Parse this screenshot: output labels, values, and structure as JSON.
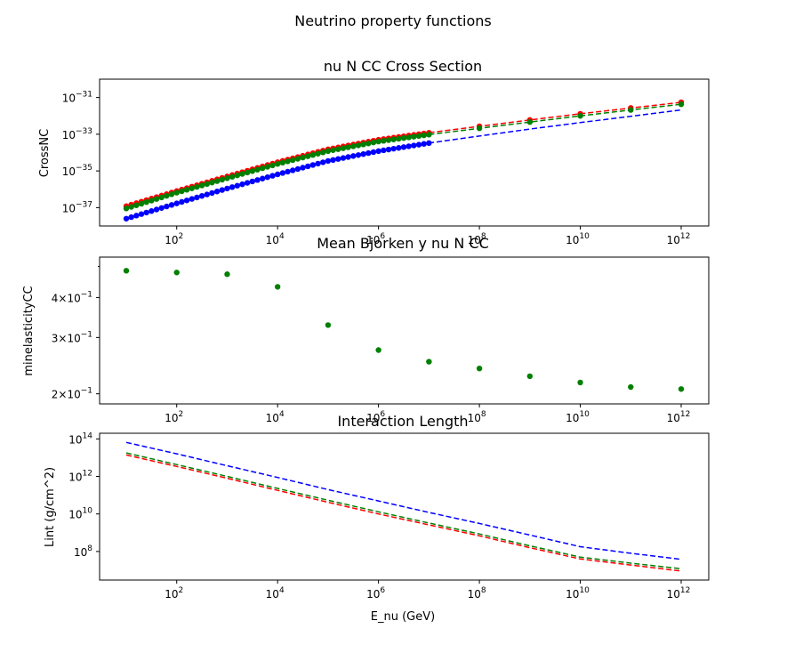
{
  "figure": {
    "suptitle": "Neutrino property functions"
  },
  "colors": {
    "red": "#ff0000",
    "green": "#008000",
    "blue": "#0000ff"
  },
  "chart_data": [
    {
      "type": "scatter",
      "title": "nu N CC Cross Section",
      "xlabel": "",
      "ylabel": "CrossNC",
      "xscale": "log",
      "yscale": "log",
      "xlim": [
        1,
        1000000000000.0
      ],
      "ylim": [
        1e-38,
        1e-30
      ],
      "x_ticks": [
        {
          "exp": 2,
          "label": "10",
          "sup": "2"
        },
        {
          "exp": 4,
          "label": "10",
          "sup": "4"
        },
        {
          "exp": 6,
          "label": "10",
          "sup": "6"
        },
        {
          "exp": 8,
          "label": "10",
          "sup": "8"
        },
        {
          "exp": 10,
          "label": "10",
          "sup": "10"
        },
        {
          "exp": 12,
          "label": "10",
          "sup": "12"
        }
      ],
      "y_ticks": [
        {
          "exp": -37,
          "label": "10",
          "sup": "−37"
        },
        {
          "exp": -35,
          "label": "10",
          "sup": "−35"
        },
        {
          "exp": -33,
          "label": "10",
          "sup": "−33"
        },
        {
          "exp": -31,
          "label": "10",
          "sup": "−31"
        }
      ],
      "x_ticks_sparse": [
        {
          "exp": 6,
          "label": "10",
          "sup": "6"
        },
        {
          "exp": 8,
          "label": "10",
          "sup": "8"
        }
      ],
      "grid": false,
      "series": [
        {
          "color": "red",
          "dense_points_log10_x": [
            1,
            5
          ],
          "dense_points_log10_y_fn": "cross",
          "sparse_x": [
            10.0,
            100.0,
            1000.0,
            10000.0,
            100000.0,
            1000000.0,
            10000000.0,
            100000000.0,
            1000000000.0,
            10000000000.0,
            100000000000.0,
            1000000000000.0
          ],
          "curve_x": [
            10.0,
            100.0,
            1000.0,
            10000.0,
            100000.0,
            1000000.0,
            10000000.0,
            100000000.0,
            1000000000.0,
            10000000000.0,
            100000000000.0,
            1000000000000.0
          ],
          "curve_y": [
            1.2e-37,
            8e-37,
            5e-36,
            3e-35,
            1.5e-34,
            5e-34,
            1.2e-33,
            2.7e-33,
            6e-33,
            1.3e-32,
            2.7e-32,
            5.5e-32
          ]
        },
        {
          "color": "green",
          "curve_x": [
            10.0,
            100.0,
            1000.0,
            10000.0,
            100000.0,
            1000000.0,
            10000000.0,
            100000000.0,
            1000000000.0,
            10000000000.0,
            100000000000.0,
            1000000000000.0
          ],
          "curve_y": [
            9e-38,
            6.5e-37,
            4e-36,
            2.4e-35,
            1.2e-34,
            4e-34,
            9.5e-34,
            2.1e-33,
            4.6e-33,
            1e-32,
            2.1e-32,
            4.3e-32
          ]
        },
        {
          "color": "blue",
          "curve_x": [
            10.0,
            100.0,
            1000.0,
            10000.0,
            100000.0,
            1000000.0,
            10000000.0,
            100000000.0,
            1000000000.0,
            10000000000.0,
            100000000000.0,
            1000000000000.0
          ],
          "curve_y": [
            2.5e-38,
            1.7e-37,
            1.1e-36,
            6.5e-36,
            3.5e-35,
            1.2e-34,
            3.3e-34,
            8e-34,
            1.9e-33,
            4.3e-33,
            9.5e-33,
            2.1e-32
          ]
        }
      ]
    },
    {
      "type": "scatter",
      "title": "Mean Bjorken y nu N CC",
      "xlabel": "",
      "ylabel": "minelasticityCC",
      "xscale": "log",
      "yscale": "log",
      "xlim": [
        1,
        1000000000000.0
      ],
      "ylim": [
        0.186,
        0.535
      ],
      "y_ticks": [
        {
          "value": 0.2,
          "label": "2×10",
          "sup": "−1"
        },
        {
          "value": 0.3,
          "label": "3×10",
          "sup": "−1"
        },
        {
          "value": 0.4,
          "label": "4×10",
          "sup": "−1"
        }
      ],
      "series": [
        {
          "color": "green",
          "x": [
            10.0,
            100.0,
            1000.0,
            10000.0,
            100000.0,
            1000000.0,
            10000000.0,
            100000000.0,
            1000000000.0,
            10000000000.0,
            100000000000.0,
            1000000000000.0
          ],
          "y": [
            0.485,
            0.479,
            0.473,
            0.432,
            0.328,
            0.274,
            0.252,
            0.24,
            0.227,
            0.217,
            0.21,
            0.207
          ]
        }
      ]
    },
    {
      "type": "line",
      "title": "Interaction Length",
      "xlabel": "E_nu (GeV)",
      "ylabel": "Lint (g/cm^2)",
      "xscale": "log",
      "yscale": "log",
      "xlim": [
        1,
        1000000000000.0
      ],
      "ylim": [
        3000000.0,
        200000000000000.0
      ],
      "y_ticks": [
        {
          "exp": 8,
          "label": "10",
          "sup": "8"
        },
        {
          "exp": 10,
          "label": "10",
          "sup": "10"
        },
        {
          "exp": 12,
          "label": "10",
          "sup": "12"
        },
        {
          "exp": 14,
          "label": "10",
          "sup": "14"
        }
      ],
      "series": [
        {
          "color": "red",
          "style": "dashed",
          "x": [
            10.0,
            100.0,
            1000.0,
            10000.0,
            100000.0,
            1000000.0,
            10000000.0,
            100000000.0,
            1000000000.0,
            10000000000.0,
            100000000000.0,
            1000000000000.0
          ],
          "y": [
            14000000000000.0,
            3400000000000.0,
            800000000000.0,
            180000000000.0,
            42000000000.0,
            10000000000.0,
            2600000000.0,
            680000000.0,
            160000000.0,
            40000000.0,
            19000000.0,
            9000000.0
          ]
        },
        {
          "color": "green",
          "style": "dashed",
          "x": [
            10.0,
            100.0,
            1000.0,
            10000.0,
            100000.0,
            1000000.0,
            10000000.0,
            100000000.0,
            1000000000.0,
            10000000000.0,
            100000000000.0,
            1000000000000.0
          ],
          "y": [
            18000000000000.0,
            4300000000000.0,
            1000000000000.0,
            230000000000.0,
            54000000000.0,
            13000000000.0,
            3300000000.0,
            860000000.0,
            200000000.0,
            50000000.0,
            24000000.0,
            12000000.0
          ]
        },
        {
          "color": "blue",
          "style": "dashed",
          "x": [
            10.0,
            100.0,
            1000.0,
            10000.0,
            100000.0,
            1000000.0,
            10000000.0,
            100000000.0,
            1000000000.0,
            10000000000.0,
            100000000000.0,
            1000000000000.0
          ],
          "y": [
            65000000000000.0,
            16000000000000.0,
            3700000000000.0,
            880000000000.0,
            200000000000.0,
            49000000000.0,
            12000000000.0,
            3100000000.0,
            750000000.0,
            180000000.0,
            80000000.0,
            38000000.0
          ]
        }
      ]
    }
  ]
}
